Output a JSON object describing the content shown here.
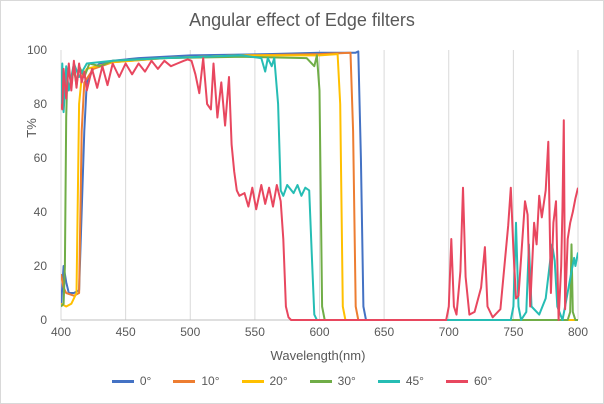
{
  "chart_data": {
    "type": "line",
    "title": "Angular effect of Edge filters",
    "xlabel": "Wavelength(nm)",
    "ylabel": "T%",
    "xlim": [
      400,
      800
    ],
    "ylim": [
      0,
      100
    ],
    "xticks": [
      400,
      450,
      500,
      550,
      600,
      650,
      700,
      750,
      800
    ],
    "yticks": [
      0,
      20,
      40,
      60,
      80,
      100
    ],
    "grid": "vertical",
    "legend_position": "bottom",
    "series": [
      {
        "name": "0°",
        "color": "#4472C4",
        "points": [
          [
            400,
            5
          ],
          [
            402,
            20
          ],
          [
            404,
            14
          ],
          [
            406,
            10
          ],
          [
            410,
            10
          ],
          [
            414,
            11
          ],
          [
            418,
            70
          ],
          [
            420,
            88
          ],
          [
            425,
            93
          ],
          [
            430,
            95
          ],
          [
            440,
            96
          ],
          [
            460,
            97
          ],
          [
            500,
            98
          ],
          [
            560,
            98.5
          ],
          [
            600,
            99
          ],
          [
            628,
            99
          ],
          [
            630,
            99.5
          ],
          [
            632,
            60
          ],
          [
            634,
            5
          ],
          [
            636,
            0
          ],
          [
            800,
            0
          ]
        ]
      },
      {
        "name": "10°",
        "color": "#ED7D31",
        "points": [
          [
            400,
            17
          ],
          [
            402,
            12
          ],
          [
            404,
            10
          ],
          [
            410,
            9
          ],
          [
            414,
            10
          ],
          [
            416,
            70
          ],
          [
            418,
            88
          ],
          [
            425,
            93
          ],
          [
            440,
            95.5
          ],
          [
            480,
            97
          ],
          [
            540,
            98
          ],
          [
            600,
            98.5
          ],
          [
            624,
            99
          ],
          [
            626,
            70
          ],
          [
            628,
            5
          ],
          [
            630,
            0
          ],
          [
            800,
            0
          ]
        ]
      },
      {
        "name": "20°",
        "color": "#FFC000",
        "points": [
          [
            400,
            6
          ],
          [
            404,
            5
          ],
          [
            408,
            6
          ],
          [
            412,
            10
          ],
          [
            414,
            80
          ],
          [
            416,
            90
          ],
          [
            420,
            93
          ],
          [
            440,
            95.5
          ],
          [
            480,
            97
          ],
          [
            540,
            98
          ],
          [
            600,
            98
          ],
          [
            614,
            98.5
          ],
          [
            616,
            80
          ],
          [
            618,
            5
          ],
          [
            620,
            0
          ],
          [
            800,
            0
          ]
        ]
      },
      {
        "name": "30°",
        "color": "#70AD47",
        "points": [
          [
            400,
            5
          ],
          [
            402,
            6
          ],
          [
            403,
            20
          ],
          [
            404,
            75
          ],
          [
            405,
            93
          ],
          [
            408,
            88
          ],
          [
            410,
            93
          ],
          [
            412,
            87
          ],
          [
            414,
            94
          ],
          [
            418,
            90
          ],
          [
            422,
            95
          ],
          [
            430,
            94
          ],
          [
            440,
            96
          ],
          [
            480,
            97
          ],
          [
            540,
            97.5
          ],
          [
            590,
            97
          ],
          [
            596,
            94
          ],
          [
            598,
            98
          ],
          [
            600,
            85
          ],
          [
            602,
            5
          ],
          [
            604,
            0
          ],
          [
            792,
            0
          ],
          [
            794,
            3
          ],
          [
            795,
            28
          ],
          [
            796,
            3
          ],
          [
            798,
            0
          ],
          [
            800,
            0
          ]
        ]
      },
      {
        "name": "45°",
        "color": "#26BDB4",
        "points": [
          [
            400,
            80
          ],
          [
            401,
            95
          ],
          [
            402,
            77
          ],
          [
            404,
            94
          ],
          [
            406,
            85
          ],
          [
            410,
            95
          ],
          [
            414,
            90
          ],
          [
            420,
            95
          ],
          [
            440,
            96
          ],
          [
            480,
            97
          ],
          [
            540,
            98
          ],
          [
            555,
            97
          ],
          [
            558,
            92
          ],
          [
            560,
            97
          ],
          [
            563,
            94
          ],
          [
            565,
            97
          ],
          [
            568,
            80
          ],
          [
            570,
            48
          ],
          [
            572,
            46
          ],
          [
            575,
            50
          ],
          [
            580,
            47
          ],
          [
            583,
            50
          ],
          [
            586,
            46
          ],
          [
            589,
            49
          ],
          [
            592,
            48
          ],
          [
            594,
            25
          ],
          [
            596,
            2
          ],
          [
            598,
            0
          ],
          [
            748,
            0
          ],
          [
            750,
            5
          ],
          [
            752,
            36
          ],
          [
            754,
            5
          ],
          [
            756,
            0
          ],
          [
            760,
            3
          ],
          [
            762,
            28
          ],
          [
            764,
            5
          ],
          [
            770,
            2
          ],
          [
            775,
            8
          ],
          [
            780,
            28
          ],
          [
            782,
            22
          ],
          [
            784,
            5
          ],
          [
            788,
            0
          ],
          [
            790,
            5
          ],
          [
            795,
            18
          ],
          [
            797,
            23
          ],
          [
            798,
            20
          ],
          [
            800,
            25
          ]
        ]
      },
      {
        "name": "60°",
        "color": "#E8475F",
        "points": [
          [
            400,
            80
          ],
          [
            401,
            78
          ],
          [
            402,
            93
          ],
          [
            404,
            82
          ],
          [
            406,
            95
          ],
          [
            408,
            85
          ],
          [
            410,
            96
          ],
          [
            412,
            86
          ],
          [
            414,
            95
          ],
          [
            416,
            88
          ],
          [
            418,
            92
          ],
          [
            420,
            85
          ],
          [
            424,
            93
          ],
          [
            428,
            86
          ],
          [
            432,
            94
          ],
          [
            436,
            87
          ],
          [
            440,
            95
          ],
          [
            445,
            90
          ],
          [
            450,
            95
          ],
          [
            455,
            91
          ],
          [
            460,
            95
          ],
          [
            465,
            92
          ],
          [
            470,
            96
          ],
          [
            475,
            93
          ],
          [
            480,
            96
          ],
          [
            485,
            94
          ],
          [
            490,
            95
          ],
          [
            495,
            96
          ],
          [
            498,
            96.5
          ],
          [
            501,
            96
          ],
          [
            504,
            91
          ],
          [
            507,
            84
          ],
          [
            510,
            97
          ],
          [
            513,
            80
          ],
          [
            516,
            78
          ],
          [
            518,
            95
          ],
          [
            521,
            75
          ],
          [
            524,
            88
          ],
          [
            527,
            72
          ],
          [
            530,
            90
          ],
          [
            532,
            65
          ],
          [
            534,
            55
          ],
          [
            536,
            48
          ],
          [
            538,
            46
          ],
          [
            542,
            47
          ],
          [
            545,
            42
          ],
          [
            548,
            49
          ],
          [
            551,
            41
          ],
          [
            555,
            50
          ],
          [
            558,
            43
          ],
          [
            561,
            49
          ],
          [
            564,
            42
          ],
          [
            567,
            50
          ],
          [
            570,
            44
          ],
          [
            572,
            30
          ],
          [
            574,
            5
          ],
          [
            576,
            1
          ],
          [
            578,
            0
          ],
          [
            698,
            0
          ],
          [
            700,
            5
          ],
          [
            702,
            30
          ],
          [
            704,
            5
          ],
          [
            706,
            2
          ],
          [
            709,
            18
          ],
          [
            711,
            49
          ],
          [
            713,
            16
          ],
          [
            716,
            2
          ],
          [
            720,
            3
          ],
          [
            725,
            12
          ],
          [
            728,
            27
          ],
          [
            730,
            5
          ],
          [
            734,
            1
          ],
          [
            740,
            4
          ],
          [
            746,
            35
          ],
          [
            748,
            49
          ],
          [
            750,
            26
          ],
          [
            752,
            8
          ],
          [
            754,
            9
          ],
          [
            757,
            30
          ],
          [
            759,
            44
          ],
          [
            761,
            39
          ],
          [
            763,
            5
          ],
          [
            766,
            36
          ],
          [
            768,
            28
          ],
          [
            770,
            46
          ],
          [
            772,
            38
          ],
          [
            775,
            48
          ],
          [
            777,
            66
          ],
          [
            779,
            10
          ],
          [
            781,
            36
          ],
          [
            783,
            44
          ],
          [
            785,
            0
          ],
          [
            787,
            20
          ],
          [
            788,
            42
          ],
          [
            789,
            74
          ],
          [
            790,
            4
          ],
          [
            792,
            30
          ],
          [
            794,
            36
          ],
          [
            796,
            40
          ],
          [
            798,
            45
          ],
          [
            800,
            49
          ]
        ]
      }
    ]
  }
}
